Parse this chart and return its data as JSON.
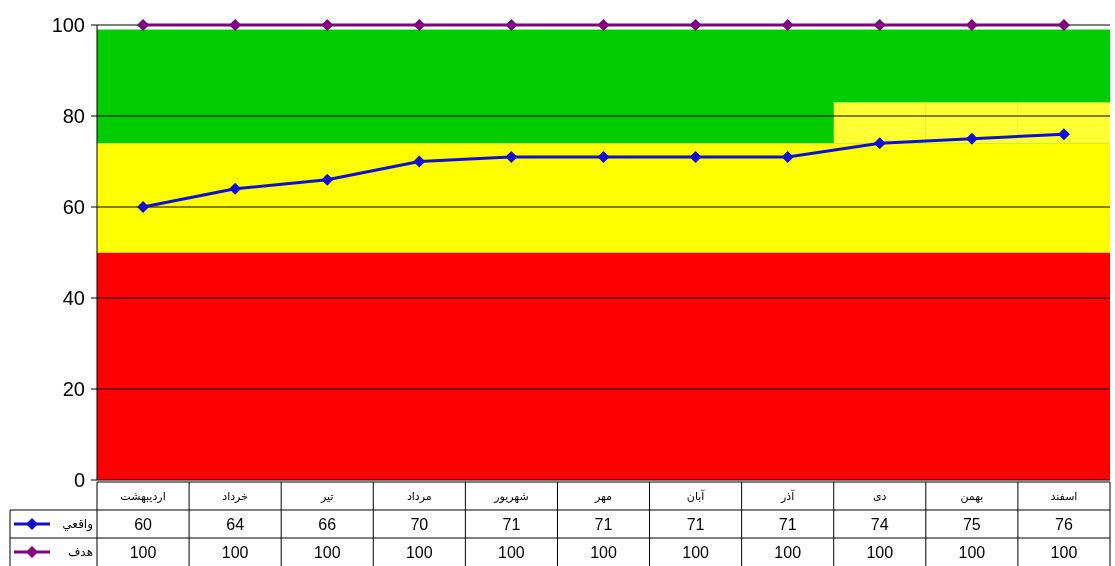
{
  "chart_data": {
    "type": "line",
    "categories": [
      "اردیبهشت",
      "خرداد",
      "تیر",
      "مرداد",
      "شهریور",
      "مهر",
      "آبان",
      "آذر",
      "دی",
      "بهمن",
      "اسفند"
    ],
    "bands": [
      {
        "axis": "y",
        "from": 0,
        "to": 50,
        "color": "#ff0000"
      },
      {
        "axis": "y",
        "from": 50,
        "to": 74,
        "color": "#ffff00"
      },
      {
        "axis": "y",
        "from": 74,
        "to": 99,
        "color": "#00cc00"
      }
    ],
    "series": [
      {
        "type": "bar",
        "color": "#ffff33",
        "base": [
          null,
          null,
          null,
          null,
          null,
          null,
          null,
          null,
          74,
          74,
          74
        ],
        "values": [
          null,
          null,
          null,
          null,
          null,
          null,
          null,
          null,
          9,
          9,
          9
        ]
      },
      {
        "name": "واقعي",
        "color": "#1010d0",
        "values": [
          60,
          64,
          66,
          70,
          71,
          71,
          71,
          71,
          74,
          75,
          76
        ],
        "value_labels": [
          "60",
          "64",
          "66",
          "70",
          "71",
          "71",
          "71",
          "71",
          "74",
          "75",
          "76"
        ]
      },
      {
        "name": "هدف",
        "color": "#800080",
        "values": [
          100,
          100,
          100,
          100,
          100,
          100,
          100,
          100,
          100,
          100,
          100
        ],
        "value_labels": [
          "100",
          "100",
          "100",
          "100",
          "100",
          "100",
          "100",
          "100",
          "100",
          "100",
          "100"
        ]
      }
    ],
    "ylim": [
      0,
      100
    ],
    "yticks": [
      0,
      20,
      40,
      60,
      80,
      100
    ],
    "grid": "y",
    "marker": "diamond",
    "line_style": "solid",
    "legend": "bottom"
  }
}
